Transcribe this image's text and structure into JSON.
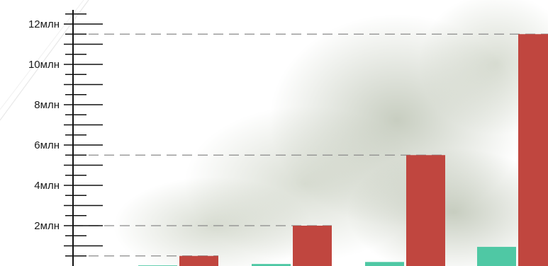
{
  "chart_data": {
    "type": "bar",
    "ylim": [
      0,
      12700000
    ],
    "y_ticks": [
      {
        "value": 2000000,
        "label": "2млн"
      },
      {
        "value": 4000000,
        "label": "4млн"
      },
      {
        "value": 6000000,
        "label": "6млн"
      },
      {
        "value": 8000000,
        "label": "8млн"
      },
      {
        "value": 10000000,
        "label": "10млн"
      },
      {
        "value": 12000000,
        "label": "12млн"
      }
    ],
    "minor_tick_step": 500000,
    "categories": [
      "",
      "",
      "",
      ""
    ],
    "series": [
      {
        "color": "#4fc8a4",
        "values": [
          30000,
          100000,
          200000,
          950000
        ]
      },
      {
        "color": "#c0463f",
        "values": [
          500000,
          2000000,
          5500000,
          11500000
        ]
      }
    ],
    "reference_lines": [
      500000,
      2000000,
      5500000,
      11500000
    ],
    "background": "faded photograph of trees",
    "grid": false
  }
}
